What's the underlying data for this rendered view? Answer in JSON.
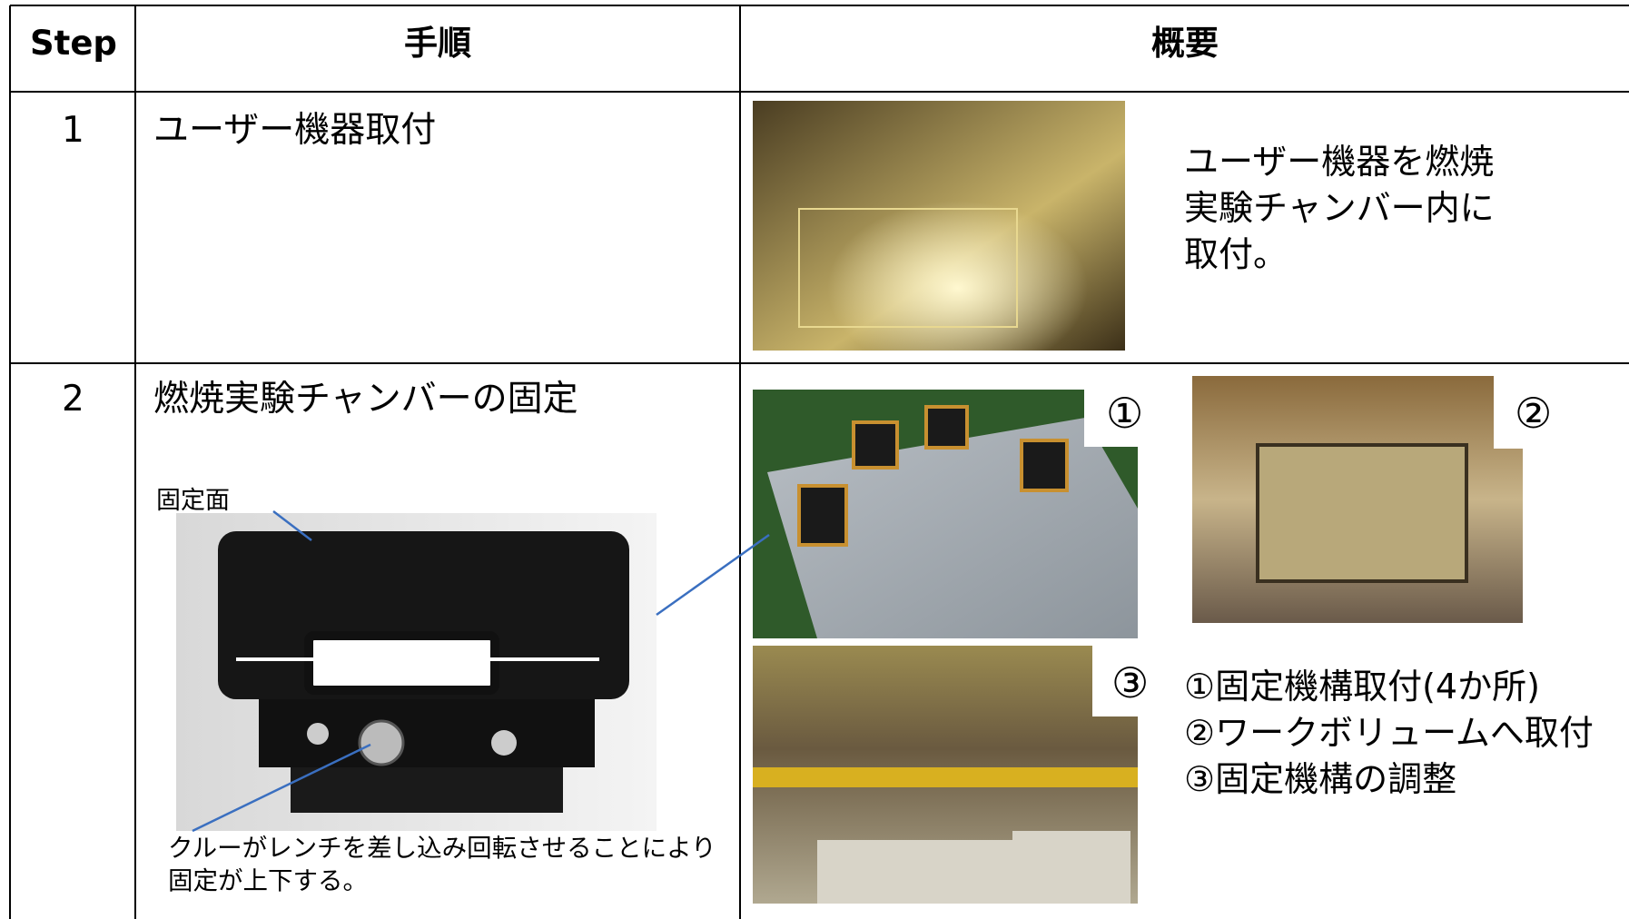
{
  "header": {
    "step": "Step",
    "procedure": "手順",
    "summary": "概要"
  },
  "rows": [
    {
      "step": "1",
      "procedure": "ユーザー機器取付",
      "summary": [
        "ユーザー機器を燃焼",
        "実験チャンバー内に",
        "取付。"
      ]
    },
    {
      "step": "2",
      "procedure": "燃焼実験チャンバーの固定",
      "photo_label": "固定面",
      "caption": "クルーがレンチを差し込み回転させることにより固定が上下する。",
      "markers": [
        "①",
        "②",
        "③"
      ],
      "summary": [
        "①固定機構取付(4か所)",
        "②ワークボリュームへ取付",
        "③固定機構の調整"
      ]
    }
  ]
}
